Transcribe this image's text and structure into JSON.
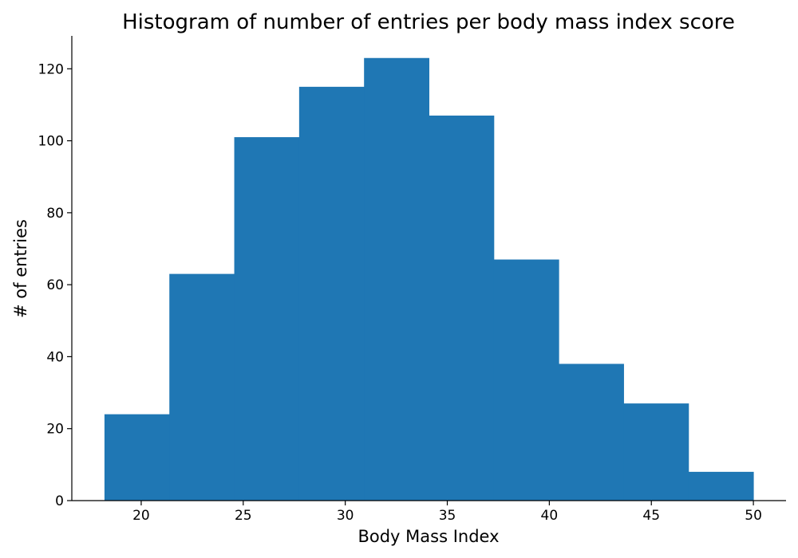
{
  "chart_data": {
    "type": "bar",
    "title": "Histogram of number of entries per body mass index score",
    "xlabel": "Body Mass Index",
    "ylabel": "# of entries",
    "bins": [
      {
        "start": 18.2,
        "end": 21.38,
        "count": 24
      },
      {
        "start": 21.38,
        "end": 24.56,
        "count": 63
      },
      {
        "start": 24.56,
        "end": 27.74,
        "count": 101
      },
      {
        "start": 27.74,
        "end": 30.92,
        "count": 115
      },
      {
        "start": 30.92,
        "end": 34.1,
        "count": 123
      },
      {
        "start": 34.1,
        "end": 37.28,
        "count": 107
      },
      {
        "start": 37.28,
        "end": 40.46,
        "count": 67
      },
      {
        "start": 40.46,
        "end": 43.64,
        "count": 38
      },
      {
        "start": 43.64,
        "end": 46.82,
        "count": 27
      },
      {
        "start": 46.82,
        "end": 50.0,
        "count": 8
      }
    ],
    "xlim": [
      16.6,
      51.6
    ],
    "ylim": [
      0,
      129.15
    ],
    "xticks": [
      20,
      25,
      30,
      35,
      40,
      45,
      50
    ],
    "yticks": [
      0,
      20,
      40,
      60,
      80,
      100,
      120
    ],
    "bar_color": "#1f77b4",
    "grid": false,
    "legend": "none"
  }
}
